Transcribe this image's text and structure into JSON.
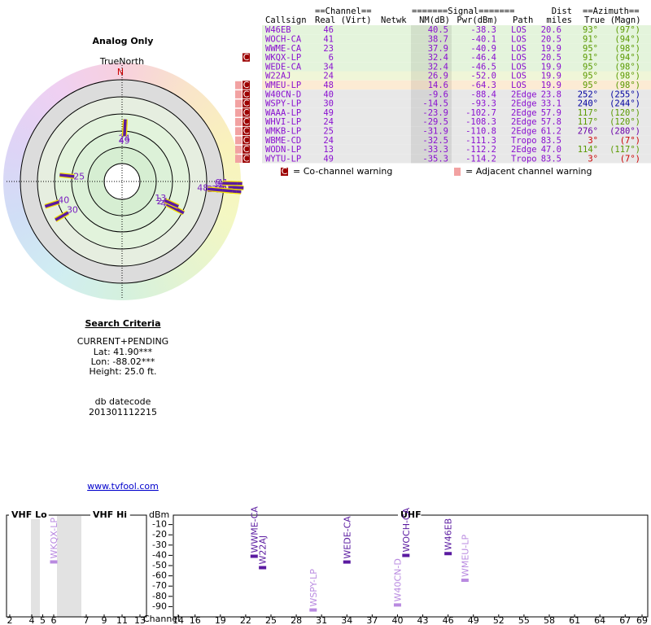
{
  "polar": {
    "title": "Analog Only",
    "north_label": "TrueNorth",
    "north_marker": "N"
  },
  "criteria": {
    "heading": "Search Criteria",
    "lines": [
      "CURRENT+PENDING",
      "Lat: 41.90***",
      "Lon: -88.02***",
      "Height: 25.0 ft."
    ],
    "db_label": "db datecode",
    "db_value": "201301112215"
  },
  "link": "www.tvfool.com",
  "table": {
    "group_headers": [
      {
        "text": "==Channel==",
        "x": 0
      },
      {
        "text": "=======Signal=======",
        "x": 1
      },
      {
        "text": "Dist",
        "x": 2
      },
      {
        "text": "==Azimuth==",
        "x": 3
      }
    ],
    "headers": [
      "Callsign",
      "Real (Virt)",
      "Netwk",
      "NM(dB)",
      "Pwr(dBm)",
      "Path",
      "miles",
      "True (Magn)"
    ],
    "rows": [
      {
        "callsign": "W46EB",
        "channel": 46,
        "nm": 40.5,
        "pwr": -38.3,
        "path": "LOS",
        "dist": 20.6,
        "az_true": 93,
        "az_true_label": "93°",
        "az_magn": 97,
        "az_magn_label": "(97°)",
        "az_color": "#5a9a00",
        "color": "#e4f4dc",
        "co": false,
        "adj": false
      },
      {
        "callsign": "WOCH-CA",
        "channel": 41,
        "nm": 38.7,
        "pwr": -40.1,
        "path": "LOS",
        "dist": 20.5,
        "az_true": 91,
        "az_true_label": "91°",
        "az_magn": 94,
        "az_magn_label": "(94°)",
        "az_color": "#5a9a00",
        "color": "#e4f4dc",
        "co": false,
        "adj": false
      },
      {
        "callsign": "WWME-CA",
        "channel": 23,
        "nm": 37.9,
        "pwr": -40.9,
        "path": "LOS",
        "dist": 19.9,
        "az_true": 95,
        "az_true_label": "95°",
        "az_magn": 98,
        "az_magn_label": "(98°)",
        "az_color": "#5a9a00",
        "color": "#e4f4dc",
        "co": false,
        "adj": false
      },
      {
        "callsign": "WKQX-LP",
        "channel": 6,
        "nm": 32.4,
        "pwr": -46.4,
        "path": "LOS",
        "dist": 20.5,
        "az_true": 91,
        "az_true_label": "91°",
        "az_magn": 94,
        "az_magn_label": "(94°)",
        "az_color": "#5a9a00",
        "color": "#e4f4dc",
        "co": true,
        "adj": false
      },
      {
        "callsign": "WEDE-CA",
        "channel": 34,
        "nm": 32.4,
        "pwr": -46.5,
        "path": "LOS",
        "dist": 19.9,
        "az_true": 95,
        "az_true_label": "95°",
        "az_magn": 98,
        "az_magn_label": "(98°)",
        "az_color": "#5a9a00",
        "color": "#e4f4dc",
        "co": false,
        "adj": false
      },
      {
        "callsign": "W22AJ",
        "channel": 24,
        "nm": 26.9,
        "pwr": -52.0,
        "pwr_label": "-52.0",
        "path": "LOS",
        "dist": 19.9,
        "az_true": 95,
        "az_true_label": "95°",
        "az_magn": 98,
        "az_magn_label": "(98°)",
        "az_color": "#5a9a00",
        "color": "#f0f6d8",
        "co": false,
        "adj": false
      },
      {
        "callsign": "WMEU-LP",
        "channel": 48,
        "nm": 14.6,
        "pwr": -64.3,
        "path": "LOS",
        "dist": 19.9,
        "az_true": 95,
        "az_true_label": "95°",
        "az_magn": 98,
        "az_magn_label": "(98°)",
        "az_color": "#5a9a00",
        "color": "#fcebd4",
        "co": true,
        "adj": true
      },
      {
        "callsign": "W40CN-D",
        "channel": 40,
        "nm": -9.6,
        "pwr": -88.4,
        "path": "2Edge",
        "dist": 23.8,
        "az_true": 252,
        "az_true_label": "252°",
        "az_magn": 255,
        "az_magn_label": "(255°)",
        "az_color": "#0000a0",
        "color": "#e8e8e8",
        "co": true,
        "adj": true
      },
      {
        "callsign": "WSPY-LP",
        "channel": 30,
        "nm": -14.5,
        "pwr": -93.3,
        "path": "2Edge",
        "dist": 33.1,
        "az_true": 240,
        "az_true_label": "240°",
        "az_magn": 244,
        "az_magn_label": "(244°)",
        "az_color": "#0000a0",
        "color": "#e8e8e8",
        "co": true,
        "adj": true
      },
      {
        "callsign": "WAAA-LP",
        "channel": 49,
        "nm": -23.9,
        "pwr": -102.7,
        "path": "2Edge",
        "dist": 57.9,
        "az_true": 117,
        "az_true_label": "117°",
        "az_magn": 120,
        "az_magn_label": "(120°)",
        "az_color": "#5a9a00",
        "color": "#e8e8e8",
        "co": true,
        "adj": true
      },
      {
        "callsign": "WHVI-LP",
        "channel": 24,
        "nm": -29.5,
        "pwr": -108.3,
        "path": "2Edge",
        "dist": 57.8,
        "az_true": 117,
        "az_true_label": "117°",
        "az_magn": 120,
        "az_magn_label": "(120°)",
        "az_color": "#5a9a00",
        "color": "#e8e8e8",
        "co": true,
        "adj": true
      },
      {
        "callsign": "WMKB-LP",
        "channel": 25,
        "nm": -31.9,
        "pwr": -110.8,
        "path": "2Edge",
        "dist": 61.2,
        "az_true": 276,
        "az_true_label": "276°",
        "az_magn": 280,
        "az_magn_label": "(280°)",
        "az_color": "#6a00a8",
        "color": "#e8e8e8",
        "co": true,
        "adj": true
      },
      {
        "callsign": "WBME-CD",
        "channel": 24,
        "nm": -32.5,
        "pwr": -111.3,
        "path": "Tropo",
        "dist": 83.5,
        "az_true": 3,
        "az_true_label": "3°",
        "az_magn": 7,
        "az_magn_label": "(7°)",
        "az_color": "#cc0000",
        "color": "#e8e8e8",
        "co": true,
        "adj": true
      },
      {
        "callsign": "WODN-LP",
        "channel": 13,
        "nm": -33.3,
        "pwr": -112.2,
        "path": "2Edge",
        "dist": 47.0,
        "dist_label": "47.0",
        "az_true": 114,
        "az_true_label": "114°",
        "az_magn": 117,
        "az_magn_label": "(117°)",
        "az_color": "#5a9a00",
        "color": "#e8e8e8",
        "co": true,
        "adj": true
      },
      {
        "callsign": "WYTU-LP",
        "channel": 49,
        "nm": -35.3,
        "pwr": -114.2,
        "path": "Tropo",
        "dist": 83.5,
        "az_true": 3,
        "az_true_label": "3°",
        "az_magn": 7,
        "az_magn_label": "(7°)",
        "az_color": "#cc0000",
        "color": "#e8e8e8",
        "co": true,
        "adj": true
      }
    ],
    "legend": {
      "co_icon": "C",
      "co_text": "= Co-channel warning",
      "adj_text": "= Adjacent channel warning"
    }
  },
  "spectrum": {
    "unit": "dBm",
    "channel_label": "Channel",
    "ylim": [
      -100,
      0
    ],
    "yticks": [
      -10,
      -20,
      -30,
      -40,
      -50,
      -60,
      -70,
      -80,
      -90
    ],
    "bands": [
      {
        "name": "VHF Lo",
        "xlim": [
          2,
          6
        ],
        "xticks": [
          2,
          4,
          5,
          6
        ]
      },
      {
        "name": "VHF Hi",
        "xlim": [
          7,
          13
        ],
        "xticks": [
          7,
          9,
          11,
          13
        ]
      },
      {
        "name": "UHF",
        "xlim": [
          14,
          69
        ],
        "xticks": [
          14,
          16,
          19,
          22,
          25,
          28,
          31,
          34,
          37,
          40,
          43,
          46,
          49,
          52,
          55,
          58,
          61,
          64,
          67,
          69
        ]
      }
    ]
  }
}
